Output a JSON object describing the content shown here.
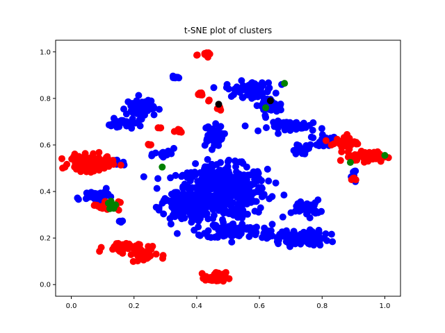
{
  "chart_data": {
    "type": "scatter",
    "title": "t-SNE plot of clusters",
    "xlabel": "",
    "ylabel": "",
    "xlim": [
      -0.05,
      1.05
    ],
    "ylim": [
      -0.05,
      1.05
    ],
    "xticks": [
      "0.0",
      "0.2",
      "0.4",
      "0.6",
      "0.8",
      "1.0"
    ],
    "yticks": [
      "0.0",
      "0.2",
      "0.4",
      "0.6",
      "0.8",
      "1.0"
    ],
    "grid": false,
    "legend": "none",
    "series": [
      {
        "color": "#0000ff",
        "clusters": [
          {
            "cx": 0.48,
            "cy": 0.4,
            "rx": 0.13,
            "ry": 0.1,
            "n": 520
          },
          {
            "cx": 0.36,
            "cy": 0.33,
            "rx": 0.07,
            "ry": 0.05,
            "n": 120
          },
          {
            "cx": 0.52,
            "cy": 0.23,
            "rx": 0.08,
            "ry": 0.03,
            "n": 80
          },
          {
            "cx": 0.45,
            "cy": 0.64,
            "rx": 0.03,
            "ry": 0.04,
            "n": 60
          },
          {
            "cx": 0.72,
            "cy": 0.2,
            "rx": 0.09,
            "ry": 0.03,
            "n": 110
          },
          {
            "cx": 0.75,
            "cy": 0.33,
            "rx": 0.04,
            "ry": 0.03,
            "n": 40
          },
          {
            "cx": 0.57,
            "cy": 0.84,
            "rx": 0.07,
            "ry": 0.03,
            "n": 70
          },
          {
            "cx": 0.63,
            "cy": 0.77,
            "rx": 0.04,
            "ry": 0.03,
            "n": 30
          },
          {
            "cx": 0.72,
            "cy": 0.68,
            "rx": 0.08,
            "ry": 0.02,
            "n": 50
          },
          {
            "cx": 0.81,
            "cy": 0.62,
            "rx": 0.04,
            "ry": 0.02,
            "n": 25
          },
          {
            "cx": 0.73,
            "cy": 0.58,
            "rx": 0.03,
            "ry": 0.02,
            "n": 20
          },
          {
            "cx": 0.22,
            "cy": 0.76,
            "rx": 0.04,
            "ry": 0.04,
            "n": 60
          },
          {
            "cx": 0.16,
            "cy": 0.69,
            "rx": 0.04,
            "ry": 0.02,
            "n": 30
          },
          {
            "cx": 0.33,
            "cy": 0.89,
            "rx": 0.01,
            "ry": 0.01,
            "n": 8
          },
          {
            "cx": 0.08,
            "cy": 0.385,
            "rx": 0.05,
            "ry": 0.02,
            "n": 30
          },
          {
            "cx": 0.15,
            "cy": 0.52,
            "rx": 0.02,
            "ry": 0.01,
            "n": 8
          },
          {
            "cx": 0.9,
            "cy": 0.47,
            "rx": 0.01,
            "ry": 0.02,
            "n": 8
          },
          {
            "cx": 0.3,
            "cy": 0.56,
            "rx": 0.03,
            "ry": 0.02,
            "n": 18
          },
          {
            "cx": 0.16,
            "cy": 0.27,
            "rx": 0.008,
            "ry": 0.008,
            "n": 4
          },
          {
            "cx": 0.02,
            "cy": 0.37,
            "rx": 0.005,
            "ry": 0.005,
            "n": 2
          }
        ]
      },
      {
        "color": "#ff0000",
        "clusters": [
          {
            "cx": 0.06,
            "cy": 0.52,
            "rx": 0.06,
            "ry": 0.03,
            "n": 140
          },
          {
            "cx": 0.11,
            "cy": 0.34,
            "rx": 0.04,
            "ry": 0.02,
            "n": 25
          },
          {
            "cx": 0.16,
            "cy": 0.16,
            "rx": 0.05,
            "ry": 0.02,
            "n": 40
          },
          {
            "cx": 0.23,
            "cy": 0.13,
            "rx": 0.04,
            "ry": 0.03,
            "n": 30
          },
          {
            "cx": 0.46,
            "cy": 0.03,
            "rx": 0.03,
            "ry": 0.02,
            "n": 60
          },
          {
            "cx": 0.95,
            "cy": 0.55,
            "rx": 0.05,
            "ry": 0.02,
            "n": 70
          },
          {
            "cx": 0.87,
            "cy": 0.61,
            "rx": 0.04,
            "ry": 0.03,
            "n": 30
          },
          {
            "cx": 0.44,
            "cy": 0.99,
            "rx": 0.015,
            "ry": 0.01,
            "n": 10
          },
          {
            "cx": 0.41,
            "cy": 0.82,
            "rx": 0.01,
            "ry": 0.01,
            "n": 8
          },
          {
            "cx": 0.34,
            "cy": 0.66,
            "rx": 0.02,
            "ry": 0.01,
            "n": 8
          },
          {
            "cx": 0.47,
            "cy": 0.76,
            "rx": 0.01,
            "ry": 0.01,
            "n": 6
          },
          {
            "cx": 0.25,
            "cy": 0.6,
            "rx": 0.01,
            "ry": 0.005,
            "n": 4
          },
          {
            "cx": 0.9,
            "cy": 0.46,
            "rx": 0.01,
            "ry": 0.01,
            "n": 5
          },
          {
            "cx": 0.28,
            "cy": 0.675,
            "rx": 0.01,
            "ry": 0.005,
            "n": 4
          },
          {
            "cx": 0.44,
            "cy": 0.79,
            "rx": 0.005,
            "ry": 0.005,
            "n": 2
          },
          {
            "cx": 0.4,
            "cy": 0.985,
            "rx": 0.005,
            "ry": 0.005,
            "n": 2
          }
        ]
      },
      {
        "color": "#008000",
        "clusters": [
          {
            "cx": 0.13,
            "cy": 0.34,
            "rx": 0.012,
            "ry": 0.02,
            "n": 10
          },
          {
            "cx": 0.29,
            "cy": 0.505,
            "rx": 0.003,
            "ry": 0.003,
            "n": 1
          },
          {
            "cx": 0.68,
            "cy": 0.865,
            "rx": 0.003,
            "ry": 0.003,
            "n": 1
          },
          {
            "cx": 0.62,
            "cy": 0.76,
            "rx": 0.003,
            "ry": 0.003,
            "n": 1
          },
          {
            "cx": 0.89,
            "cy": 0.525,
            "rx": 0.003,
            "ry": 0.003,
            "n": 1
          },
          {
            "cx": 1.0,
            "cy": 0.555,
            "rx": 0.003,
            "ry": 0.003,
            "n": 1
          }
        ]
      },
      {
        "color": "#000000",
        "clusters": [
          {
            "cx": 0.635,
            "cy": 0.79,
            "rx": 0.002,
            "ry": 0.002,
            "n": 1
          },
          {
            "cx": 0.47,
            "cy": 0.775,
            "rx": 0.002,
            "ry": 0.002,
            "n": 1
          }
        ]
      }
    ]
  }
}
